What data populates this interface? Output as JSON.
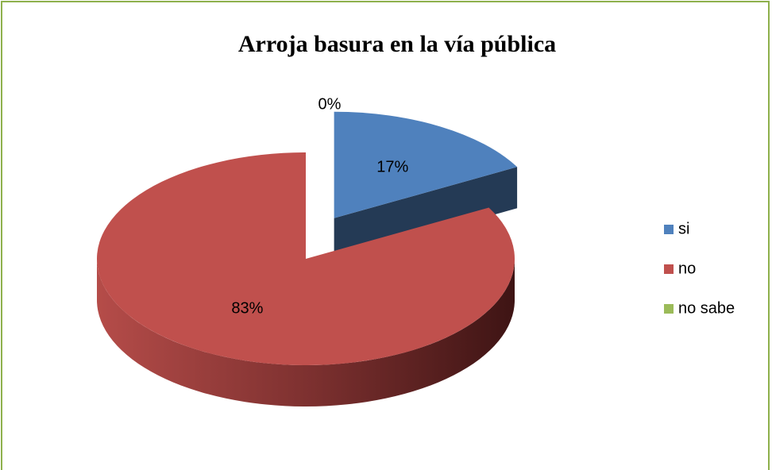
{
  "chart_data": {
    "type": "pie",
    "title": "Arroja basura en la vía pública",
    "categories": [
      "si",
      "no",
      "no sabe"
    ],
    "values": [
      17,
      83,
      0
    ],
    "value_labels": [
      "17%",
      "83%",
      "0%"
    ],
    "colors": [
      "#4f81bd",
      "#c0504d",
      "#9bbb59"
    ],
    "legend": "right"
  }
}
